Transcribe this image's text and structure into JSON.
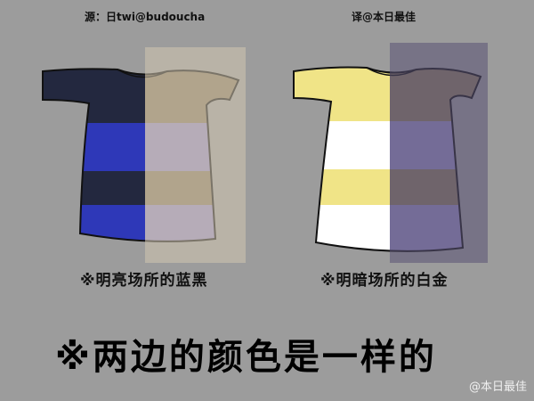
{
  "credits": {
    "source": "源：日twi@budoucha",
    "translator": "译@本日最佳"
  },
  "captions": {
    "left": "※明亮场所的蓝黑",
    "right": "※明暗场所的白金"
  },
  "headline": "※两边的颜色是一样的",
  "watermark": "@本日最佳",
  "colors": {
    "background": "#9c9c9c",
    "navy": "#23283f",
    "royal_blue": "#2e38b8",
    "brown": "#8a7a60",
    "lavender": "#968cc0",
    "cream_overlay": "#d2c6b0",
    "yellow": "#f0e487",
    "white": "#ffffff",
    "purple_overlay": "#5a5274"
  }
}
